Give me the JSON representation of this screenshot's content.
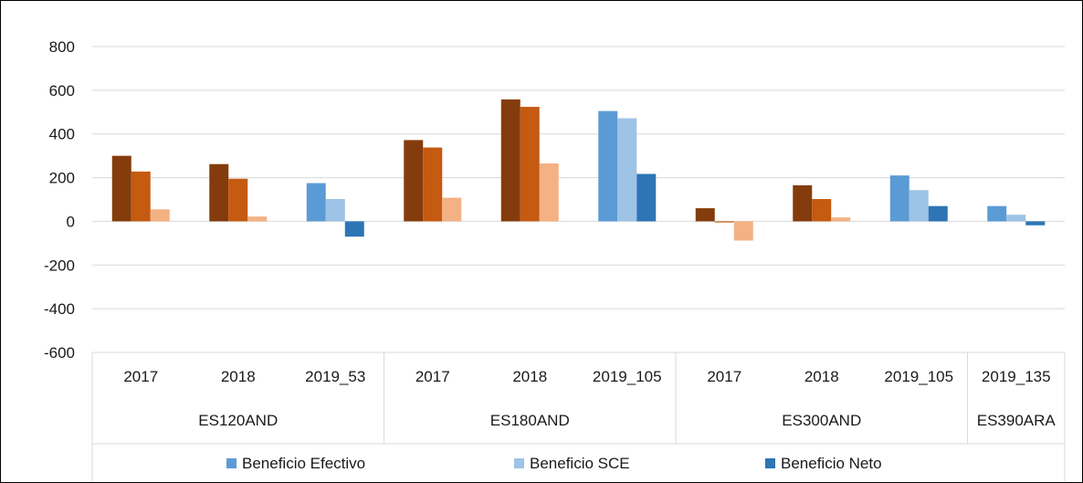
{
  "chart_data": {
    "type": "bar",
    "ylim": [
      -600,
      800
    ],
    "yticks": [
      800,
      600,
      400,
      200,
      0,
      -200,
      -400,
      -600
    ],
    "grid": true,
    "legend_position": "bottom",
    "groups": [
      {
        "name": "ES120AND",
        "categories": [
          {
            "label": "2017",
            "palette": "orange",
            "values": [
              300,
              228,
              55
            ]
          },
          {
            "label": "2018",
            "palette": "orange",
            "values": [
              262,
              195,
              22
            ]
          },
          {
            "label": "2019_53",
            "palette": "blue",
            "values": [
              175,
              102,
              -70
            ]
          }
        ]
      },
      {
        "name": "ES180AND",
        "categories": [
          {
            "label": "2017",
            "palette": "orange",
            "values": [
              372,
              338,
              108
            ]
          },
          {
            "label": "2018",
            "palette": "orange",
            "values": [
              558,
              524,
              265
            ]
          },
          {
            "label": "2019_105",
            "palette": "blue",
            "values": [
              505,
              472,
              217
            ]
          }
        ]
      },
      {
        "name": "ES300AND",
        "categories": [
          {
            "label": "2017",
            "palette": "orange",
            "values": [
              60,
              -5,
              -88
            ]
          },
          {
            "label": "2018",
            "palette": "orange",
            "values": [
              165,
              102,
              18
            ]
          },
          {
            "label": "2019_105",
            "palette": "blue",
            "values": [
              210,
              143,
              70
            ]
          }
        ]
      },
      {
        "name": "ES390ARA",
        "categories": [
          {
            "label": "2019_135",
            "palette": "blue",
            "values": [
              70,
              30,
              -18
            ]
          }
        ]
      }
    ],
    "series": [
      {
        "name": "Beneficio Efectivo"
      },
      {
        "name": "Beneficio SCE"
      },
      {
        "name": "Beneficio Neto"
      }
    ],
    "colors": {
      "blue": [
        "#5b9bd5",
        "#9dc3e6",
        "#2e75b6"
      ],
      "orange": [
        "#843c0c",
        "#c55a11",
        "#f4b183"
      ]
    }
  }
}
